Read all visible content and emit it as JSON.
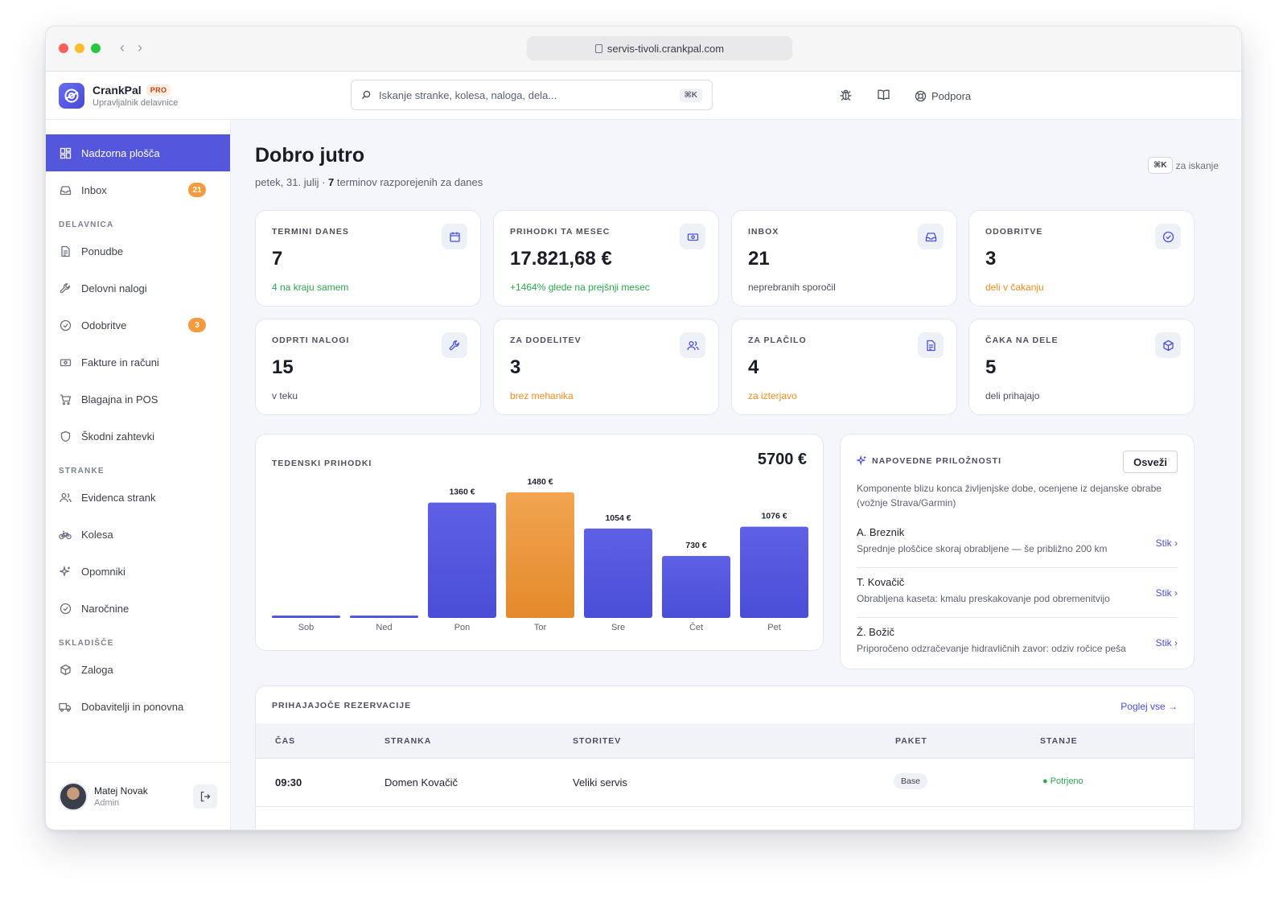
{
  "browser": {
    "url": "servis-tivoli.crankpal.com"
  },
  "brand": {
    "name": "CrankPal",
    "tier": "PRO",
    "subtitle": "Upravljalnik delavnice"
  },
  "search": {
    "placeholder": "Iskanje stranke, kolesa, naloga, dela...",
    "shortcut": "⌘K"
  },
  "header": {
    "support": "Podpora"
  },
  "sidebar": {
    "items": [
      {
        "label": "Nadzorna plošča",
        "icon": "dashboard-icon",
        "active": true
      },
      {
        "label": "Inbox",
        "icon": "inbox-icon",
        "badge": "21"
      }
    ],
    "sections": [
      {
        "title": "DELAVNICA",
        "items": [
          {
            "label": "Ponudbe",
            "icon": "document-icon"
          },
          {
            "label": "Delovni nalogi",
            "icon": "wrench-icon"
          },
          {
            "label": "Odobritve",
            "icon": "check-circle-icon",
            "badge": "3"
          },
          {
            "label": "Fakture in računi",
            "icon": "banknote-icon"
          },
          {
            "label": "Blagajna in POS",
            "icon": "cart-icon"
          },
          {
            "label": "Škodni zahtevki",
            "icon": "shield-icon"
          }
        ]
      },
      {
        "title": "STRANKE",
        "items": [
          {
            "label": "Evidenca strank",
            "icon": "users-icon"
          },
          {
            "label": "Kolesa",
            "icon": "bike-icon"
          },
          {
            "label": "Opomniki",
            "icon": "sparkle-icon"
          },
          {
            "label": "Naročnine",
            "icon": "check-circle-icon"
          }
        ]
      },
      {
        "title": "SKLADIŠČE",
        "items": [
          {
            "label": "Zaloga",
            "icon": "box-icon"
          },
          {
            "label": "Dobavitelji in ponovna",
            "icon": "truck-icon"
          }
        ]
      }
    ]
  },
  "user": {
    "name": "Matej Novak",
    "role": "Admin"
  },
  "page": {
    "title": "Dobro jutro",
    "date": "petek, 31. julij · ",
    "count": "7",
    "count_suffix": " terminov razporejenih za danes",
    "kbd": "⌘K",
    "kbd_label": "za iskanje"
  },
  "stats": [
    {
      "label": "TERMINI DANES",
      "value": "7",
      "note": "4 na kraju samem",
      "tone": "green",
      "icon": "calendar-icon"
    },
    {
      "label": "PRIHODKI TA MESEC",
      "value": "17.821,68 €",
      "note": "+1464% glede na prejšnji mesec",
      "tone": "green",
      "icon": "banknote-icon"
    },
    {
      "label": "INBOX",
      "value": "21",
      "note": "neprebranih sporočil",
      "tone": "gray",
      "icon": "inbox-icon"
    },
    {
      "label": "ODOBRITVE",
      "value": "3",
      "note": "deli v čakanju",
      "tone": "orange",
      "icon": "check-circle-icon"
    },
    {
      "label": "ODPRTI NALOGI",
      "value": "15",
      "note": "v teku",
      "tone": "gray",
      "icon": "wrench-icon"
    },
    {
      "label": "ZA DODELITEV",
      "value": "3",
      "note": "brez mehanika",
      "tone": "orange",
      "icon": "users-icon"
    },
    {
      "label": "ZA PLAČILO",
      "value": "4",
      "note": "za izterjavo",
      "tone": "orange",
      "icon": "document-icon"
    },
    {
      "label": "ČAKA NA DELE",
      "value": "5",
      "note": "deli prihajajo",
      "tone": "gray",
      "icon": "box-icon"
    }
  ],
  "weekly": {
    "title": "TEDENSKI PRIHODKI",
    "total": "5700 €"
  },
  "chart_data": {
    "type": "bar",
    "title": "TEDENSKI PRIHODKI",
    "categories": [
      "Sob",
      "Ned",
      "Pon",
      "Tor",
      "Sre",
      "Čet",
      "Pet"
    ],
    "values": [
      0,
      0,
      1360,
      1480,
      1054,
      730,
      1076
    ],
    "value_labels": [
      "",
      "",
      "1360 €",
      "1480 €",
      "1054 €",
      "730 €",
      "1076 €"
    ],
    "highlight_index": 3,
    "colors": {
      "bar": "#5457dc",
      "highlight": "#ef9a3e"
    },
    "ylim": [
      0,
      1480
    ],
    "grid": false
  },
  "opportunities": {
    "title": "NAPOVEDNE PRILOŽNOSTI",
    "refresh": "Osveži",
    "description": "Komponente blizu konca življenjske dobe, ocenjene iz dejanske obrabe (vožnje Strava/Garmin)",
    "items": [
      {
        "name": "A. Breznik",
        "detail": "Sprednje ploščice skoraj obrabljene — še približno 200 km",
        "action": "Stik ›"
      },
      {
        "name": "T. Kovačič",
        "detail": "Obrabljena kaseta: kmalu preskakovanje pod obremenitvijo",
        "action": "Stik ›"
      },
      {
        "name": "Ž. Božič",
        "detail": "Priporočeno odzračevanje hidravličnih zavor: odziv ročice peša",
        "action": "Stik ›"
      }
    ]
  },
  "reservations": {
    "title": "PRIHAJAJOČE REZERVACIJE",
    "view_all": "Poglej vse →",
    "columns": [
      "ČAS",
      "STRANKA",
      "STORITEV",
      "PAKET",
      "STANJE"
    ],
    "rows": [
      {
        "time": "09:30",
        "customer": "Domen Kovačič",
        "service": "Veliki servis",
        "package": "Base",
        "status": "● Potrjeno"
      }
    ]
  }
}
